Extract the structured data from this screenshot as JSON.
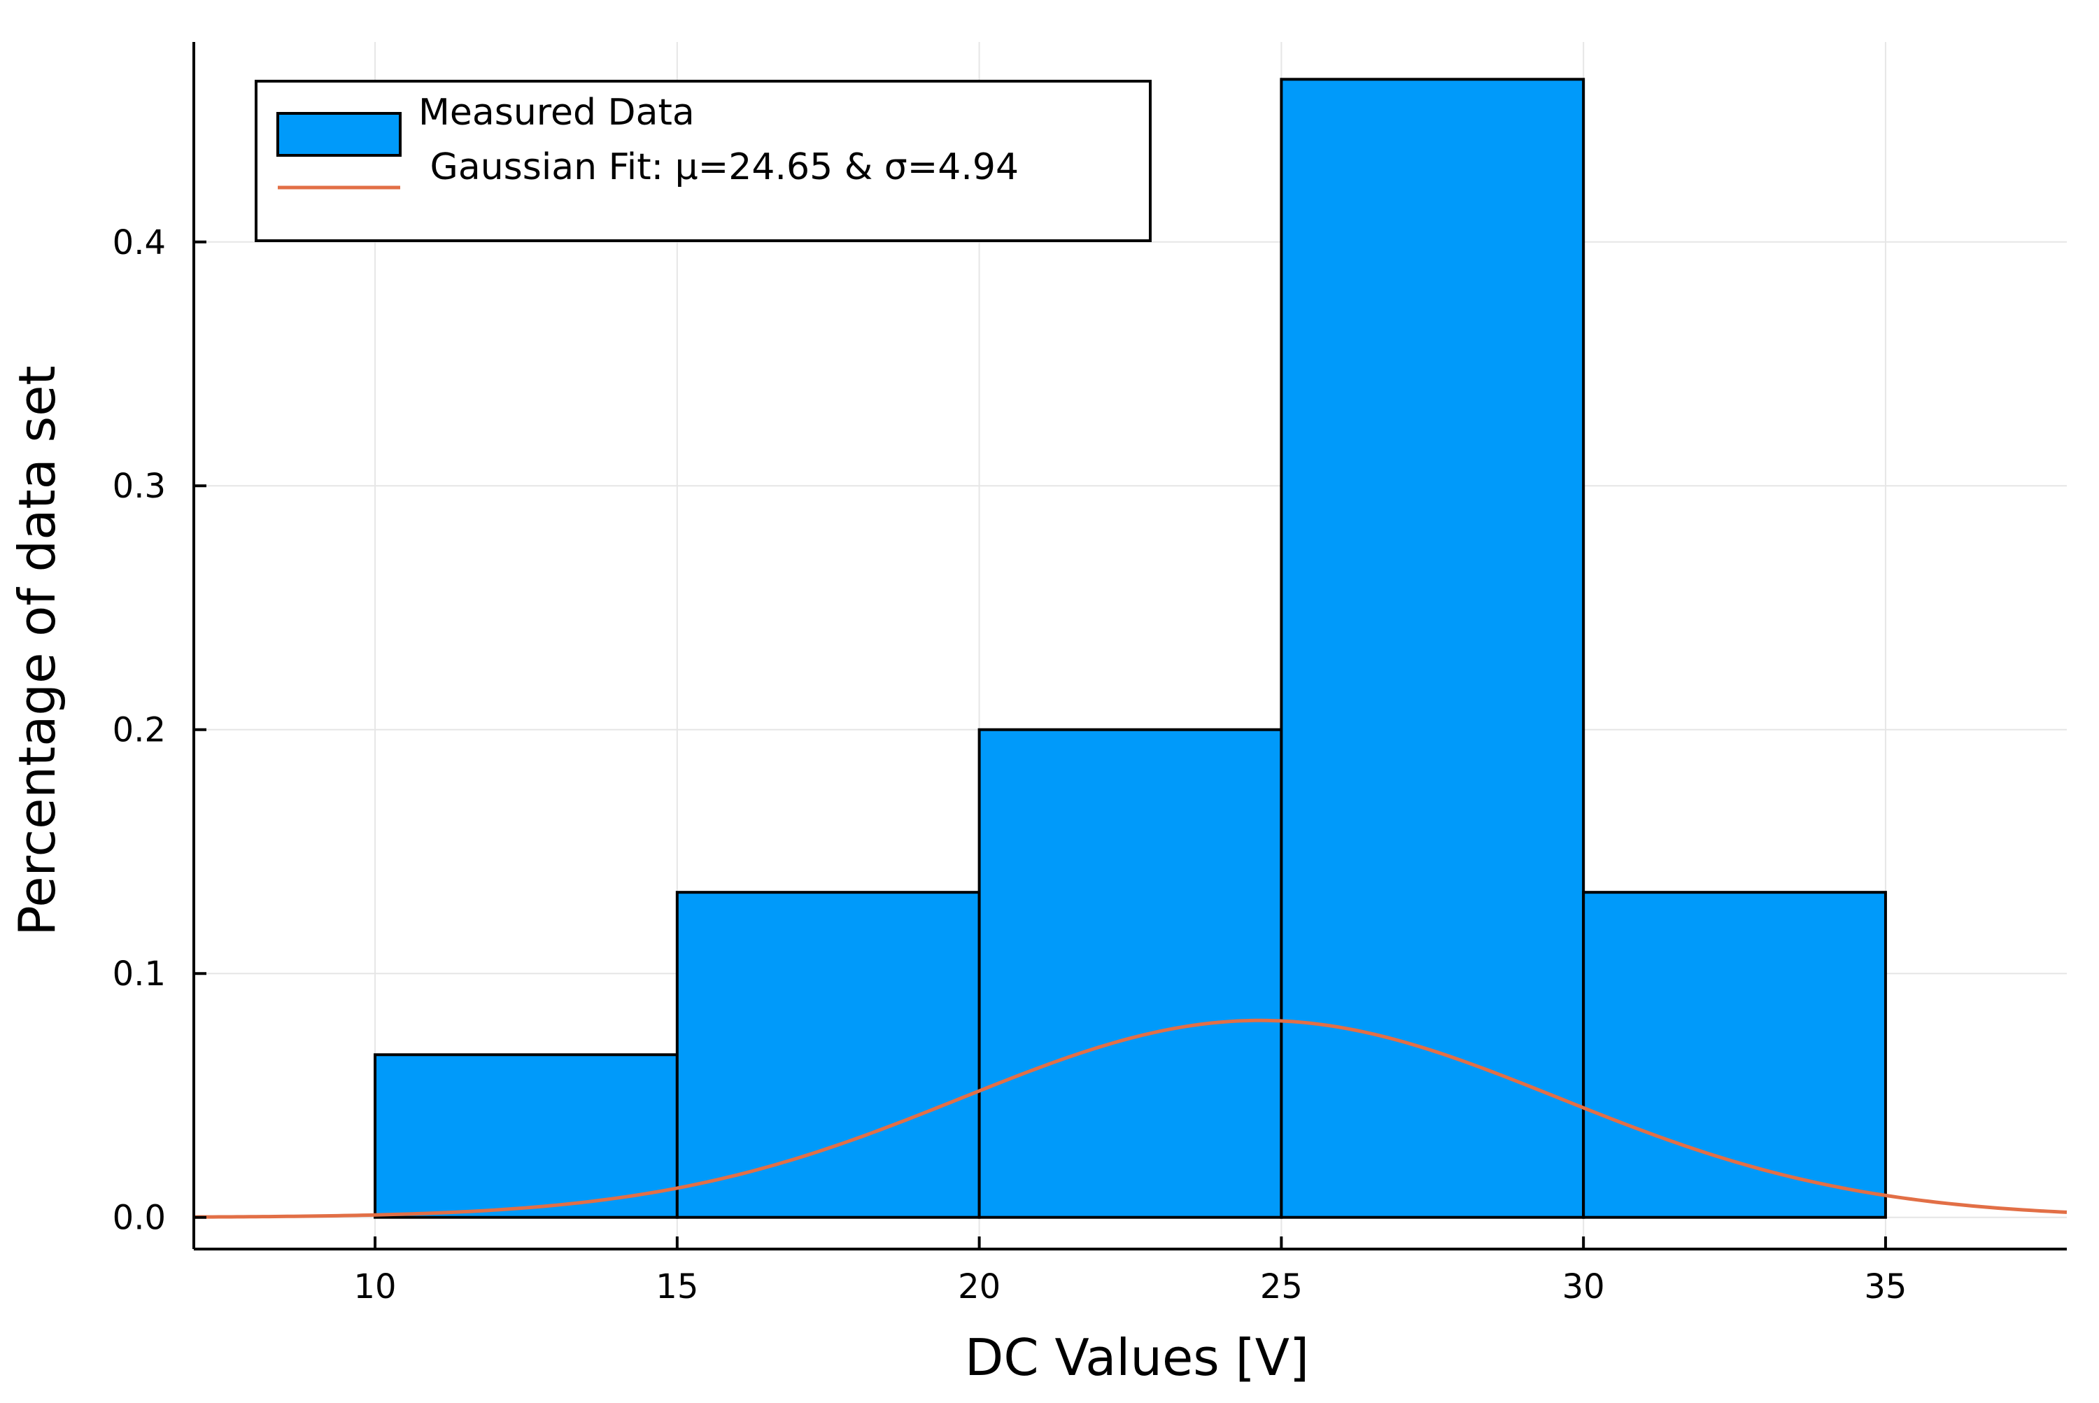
{
  "chart_data": {
    "type": "bar",
    "title": "",
    "xlabel": "DC Values [V]",
    "ylabel": "Percentage of data set",
    "xlim": [
      7,
      38
    ],
    "ylim": [
      -0.013,
      0.482
    ],
    "grid": true,
    "legend_position": "top-left",
    "xticks": [
      "10",
      "15",
      "20",
      "25",
      "30",
      "35"
    ],
    "yticks": [
      "0.0",
      "0.1",
      "0.2",
      "0.3",
      "0.4"
    ],
    "bins": [
      {
        "x0": 10,
        "x1": 15,
        "value": 0.0667
      },
      {
        "x0": 15,
        "x1": 20,
        "value": 0.1333
      },
      {
        "x0": 20,
        "x1": 25,
        "value": 0.2
      },
      {
        "x0": 25,
        "x1": 30,
        "value": 0.4667
      },
      {
        "x0": 30,
        "x1": 35,
        "value": 0.1333
      }
    ],
    "fit": {
      "mu": 24.65,
      "sigma": 4.94
    },
    "series": [
      {
        "name": "Measured Data",
        "kind": "histogram",
        "color": "#009AFA"
      },
      {
        "name": " Gaussian Fit: μ=24.65 & σ=4.94",
        "kind": "line",
        "color": "#E26F46"
      }
    ]
  }
}
